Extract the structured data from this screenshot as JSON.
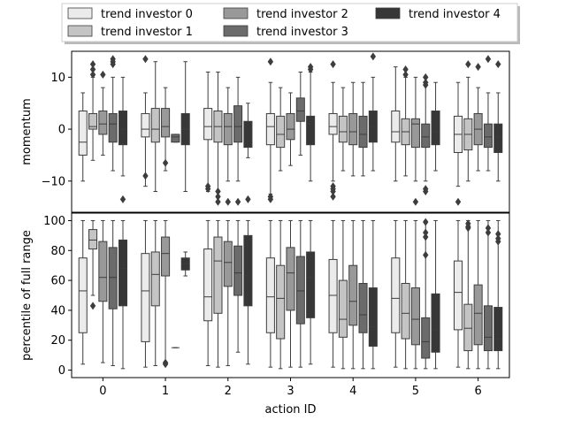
{
  "chart_data": {
    "type": "box",
    "xlabel": "action ID",
    "categories": [
      "0",
      "1",
      "2",
      "3",
      "4",
      "5",
      "6"
    ],
    "legend": {
      "placement": "top-center",
      "entries": [
        "trend investor 0",
        "trend investor 1",
        "trend investor 2",
        "trend investor 3",
        "trend investor 4"
      ]
    },
    "series_colors": [
      "#ebebeb",
      "#c4c4c4",
      "#999999",
      "#6b6b6b",
      "#373737"
    ],
    "panels": [
      {
        "ylabel": "momentum",
        "ylim": [
          -16,
          15
        ],
        "yticks": [
          -10,
          0,
          10
        ],
        "yticklabels": [
          "−10",
          "0",
          "10"
        ],
        "series": [
          {
            "name": "trend investor 0",
            "boxes": [
              {
                "min": -10,
                "q1": -5,
                "med": -2.5,
                "q3": 3.5,
                "max": 7,
                "outliers": []
              },
              {
                "min": -11,
                "q1": -1.5,
                "med": 0,
                "q3": 3,
                "max": 7,
                "outliers": [
                  13.5,
                  -9
                ]
              },
              {
                "min": -12,
                "q1": -2,
                "med": 0.5,
                "q3": 4,
                "max": 11,
                "outliers": [
                  -11,
                  -11.5
                ]
              },
              {
                "min": -12.5,
                "q1": -3,
                "med": 0.5,
                "q3": 3,
                "max": 9,
                "outliers": [
                  13,
                  -13,
                  -13.5
                ]
              },
              {
                "min": -10,
                "q1": -1,
                "med": 0.5,
                "q3": 3,
                "max": 9,
                "outliers": [
                  12.5,
                  -11,
                  -11.5,
                  -12,
                  -13
                ]
              },
              {
                "min": -10,
                "q1": -2.5,
                "med": -0.5,
                "q3": 3.5,
                "max": 12,
                "outliers": []
              },
              {
                "min": -11,
                "q1": -4.5,
                "med": -1,
                "q3": 2.5,
                "max": 9,
                "outliers": [
                  -14
                ]
              }
            ]
          },
          {
            "name": "trend investor 1",
            "boxes": [
              {
                "min": -6,
                "q1": 0,
                "med": 0.5,
                "q3": 3,
                "max": 10,
                "outliers": [
                  12.5,
                  11.5,
                  10.5
                ]
              },
              {
                "min": -12,
                "q1": -2.5,
                "med": 0,
                "q3": 4,
                "max": 13,
                "outliers": []
              },
              {
                "min": -12,
                "q1": -2.5,
                "med": 0.5,
                "q3": 3.5,
                "max": 11,
                "outliers": [
                  -12,
                  -13,
                  -14
                ]
              },
              {
                "min": -8,
                "q1": -3.5,
                "med": -1,
                "q3": 2.5,
                "max": 8,
                "outliers": []
              },
              {
                "min": -8,
                "q1": -2.5,
                "med": -0.5,
                "q3": 2.5,
                "max": 8,
                "outliers": []
              },
              {
                "min": -9,
                "q1": -3,
                "med": -0.5,
                "q3": 2,
                "max": 10,
                "outliers": [
                  11.5,
                  10.5
                ]
              },
              {
                "min": -10,
                "q1": -4,
                "med": -1,
                "q3": 2,
                "max": 10,
                "outliers": [
                  12.5
                ]
              }
            ]
          },
          {
            "name": "trend investor 2",
            "boxes": [
              {
                "min": -5,
                "q1": -1,
                "med": 1,
                "q3": 3.5,
                "max": 8,
                "outliers": [
                  10.5
                ]
              },
              {
                "min": -8,
                "q1": -1.5,
                "med": 0.5,
                "q3": 4,
                "max": 8,
                "outliers": [
                  -6.5
                ]
              },
              {
                "min": -10,
                "q1": -3,
                "med": 0.5,
                "q3": 3,
                "max": 8,
                "outliers": [
                  -14
                ]
              },
              {
                "min": -7,
                "q1": -2,
                "med": 0,
                "q3": 3,
                "max": 7,
                "outliers": []
              },
              {
                "min": -9,
                "q1": -3,
                "med": -0.5,
                "q3": 3,
                "max": 9,
                "outliers": []
              },
              {
                "min": -10,
                "q1": -3.5,
                "med": 1,
                "q3": 2,
                "max": 10,
                "outliers": [
                  -14
                ]
              },
              {
                "min": -8,
                "q1": -3,
                "med": 0,
                "q3": 3,
                "max": 8,
                "outliers": [
                  12
                ]
              }
            ]
          },
          {
            "name": "trend investor 3",
            "boxes": [
              {
                "min": -8,
                "q1": -2.5,
                "med": 1,
                "q3": 3,
                "max": 10,
                "outliers": [
                  13.5,
                  13,
                  12.5
                ]
              },
              {
                "min": -2.5,
                "q1": -2.5,
                "med": -1.5,
                "q3": -1,
                "max": -1,
                "outliers": []
              },
              {
                "min": -10,
                "q1": -2.5,
                "med": 0.5,
                "q3": 4.5,
                "max": 10,
                "outliers": [
                  -14
                ]
              },
              {
                "min": -5,
                "q1": 1.5,
                "med": 3.5,
                "q3": 6,
                "max": 11,
                "outliers": []
              },
              {
                "min": -9,
                "q1": -3.5,
                "med": -1,
                "q3": 2.5,
                "max": 9,
                "outliers": []
              },
              {
                "min": -10,
                "q1": -3.5,
                "med": -1.5,
                "q3": 1,
                "max": 9,
                "outliers": [
                  10,
                  9,
                  8.5,
                  -11.5,
                  -12
                ]
              },
              {
                "min": -8,
                "q1": -3.5,
                "med": -1.5,
                "q3": 1,
                "max": 7,
                "outliers": [
                  13.5
                ]
              }
            ]
          },
          {
            "name": "trend investor 4",
            "boxes": [
              {
                "min": -9,
                "q1": -3,
                "med": 0,
                "q3": 3.5,
                "max": 10,
                "outliers": [
                  -13.5
                ]
              },
              {
                "min": -12,
                "q1": -3,
                "med": 0,
                "q3": 3,
                "max": 13,
                "outliers": []
              },
              {
                "min": -5.5,
                "q1": -3.5,
                "med": -1,
                "q3": 1.5,
                "max": 5,
                "outliers": [
                  -13.5
                ]
              },
              {
                "min": -10,
                "q1": -3,
                "med": 1,
                "q3": 2.5,
                "max": 11,
                "outliers": [
                  12,
                  11.5
                ]
              },
              {
                "min": -8,
                "q1": -2.5,
                "med": 0.5,
                "q3": 3.5,
                "max": 10,
                "outliers": [
                  14
                ]
              },
              {
                "min": -8,
                "q1": -3,
                "med": -0.5,
                "q3": 3.5,
                "max": 9,
                "outliers": []
              },
              {
                "min": -10,
                "q1": -4.5,
                "med": -1.5,
                "q3": 1,
                "max": 7,
                "outliers": [
                  12.5
                ]
              }
            ]
          }
        ]
      },
      {
        "ylabel": "percentile of full range",
        "ylim": [
          -5,
          105
        ],
        "yticks": [
          0,
          20,
          40,
          60,
          80,
          100
        ],
        "yticklabels": [
          "0",
          "20",
          "40",
          "60",
          "80",
          "100"
        ],
        "series": [
          {
            "name": "trend investor 0",
            "boxes": [
              {
                "min": 4,
                "q1": 25,
                "med": 53,
                "q3": 75,
                "max": 100,
                "outliers": []
              },
              {
                "min": 2,
                "q1": 19,
                "med": 53,
                "q3": 78,
                "max": 100,
                "outliers": []
              },
              {
                "min": 3,
                "q1": 33,
                "med": 49,
                "q3": 81,
                "max": 100,
                "outliers": []
              },
              {
                "min": 2,
                "q1": 25,
                "med": 49,
                "q3": 75,
                "max": 100,
                "outliers": []
              },
              {
                "min": 2,
                "q1": 25,
                "med": 50,
                "q3": 74,
                "max": 100,
                "outliers": []
              },
              {
                "min": 2,
                "q1": 25,
                "med": 48,
                "q3": 75,
                "max": 100,
                "outliers": []
              },
              {
                "min": 2,
                "q1": 27,
                "med": 52,
                "q3": 73,
                "max": 100,
                "outliers": []
              }
            ]
          },
          {
            "name": "trend investor 1",
            "boxes": [
              {
                "min": 50,
                "q1": 81,
                "med": 87,
                "q3": 94,
                "max": 100,
                "outliers": [
                  43
                ]
              },
              {
                "min": 3,
                "q1": 43,
                "med": 64,
                "q3": 79,
                "max": 100,
                "outliers": []
              },
              {
                "min": 2,
                "q1": 38,
                "med": 73,
                "q3": 89,
                "max": 100,
                "outliers": []
              },
              {
                "min": 1,
                "q1": 21,
                "med": 48,
                "q3": 70,
                "max": 100,
                "outliers": []
              },
              {
                "min": 1,
                "q1": 22,
                "med": 34,
                "q3": 60,
                "max": 100,
                "outliers": []
              },
              {
                "min": 1,
                "q1": 21,
                "med": 38,
                "q3": 58,
                "max": 100,
                "outliers": []
              },
              {
                "min": 1,
                "q1": 13,
                "med": 28,
                "q3": 44,
                "max": 100,
                "outliers": [
                  98,
                  96,
                  95
                ]
              }
            ]
          },
          {
            "name": "trend investor 2",
            "boxes": [
              {
                "min": 5,
                "q1": 46,
                "med": 62,
                "q3": 86,
                "max": 100,
                "outliers": []
              },
              {
                "min": 4,
                "q1": 63,
                "med": 78,
                "q3": 89,
                "max": 100,
                "outliers": [
                  5,
                  4
                ]
              },
              {
                "min": 3,
                "q1": 56,
                "med": 72,
                "q3": 86,
                "max": 100,
                "outliers": []
              },
              {
                "min": 2,
                "q1": 40,
                "med": 65,
                "q3": 82,
                "max": 100,
                "outliers": []
              },
              {
                "min": 1,
                "q1": 30,
                "med": 46,
                "q3": 70,
                "max": 100,
                "outliers": []
              },
              {
                "min": 1,
                "q1": 17,
                "med": 34,
                "q3": 55,
                "max": 100,
                "outliers": []
              },
              {
                "min": 1,
                "q1": 17,
                "med": 38,
                "q3": 57,
                "max": 100,
                "outliers": []
              }
            ]
          },
          {
            "name": "trend investor 3",
            "boxes": [
              {
                "min": 3,
                "q1": 41,
                "med": 62,
                "q3": 82,
                "max": 100,
                "outliers": []
              },
              {
                "min": 15,
                "q1": 15,
                "med": 15,
                "q3": 15,
                "max": 15,
                "outliers": []
              },
              {
                "min": 12,
                "q1": 50,
                "med": 65,
                "q3": 83,
                "max": 100,
                "outliers": []
              },
              {
                "min": 2,
                "q1": 31,
                "med": 53,
                "q3": 76,
                "max": 100,
                "outliers": []
              },
              {
                "min": 1,
                "q1": 25,
                "med": 37,
                "q3": 58,
                "max": 100,
                "outliers": []
              },
              {
                "min": 1,
                "q1": 8,
                "med": 19,
                "q3": 35,
                "max": 100,
                "outliers": [
                  99,
                  92,
                  89,
                  77
                ]
              },
              {
                "min": 1,
                "q1": 13,
                "med": 22,
                "q3": 43,
                "max": 100,
                "outliers": [
                  95,
                  92
                ]
              }
            ]
          },
          {
            "name": "trend investor 4",
            "boxes": [
              {
                "min": 1,
                "q1": 43,
                "med": 68,
                "q3": 87,
                "max": 100,
                "outliers": []
              },
              {
                "min": 63,
                "q1": 67,
                "med": 71,
                "q3": 75,
                "max": 79,
                "outliers": []
              },
              {
                "min": 4,
                "q1": 43,
                "med": 63,
                "q3": 90,
                "max": 100,
                "outliers": []
              },
              {
                "min": 4,
                "q1": 35,
                "med": 62,
                "q3": 79,
                "max": 100,
                "outliers": []
              },
              {
                "min": 1,
                "q1": 16,
                "med": 29,
                "q3": 55,
                "max": 100,
                "outliers": []
              },
              {
                "min": 1,
                "q1": 12,
                "med": 27,
                "q3": 51,
                "max": 100,
                "outliers": []
              },
              {
                "min": 1,
                "q1": 13,
                "med": 21,
                "q3": 42,
                "max": 100,
                "outliers": [
                  91,
                  88,
                  86
                ]
              }
            ]
          }
        ]
      }
    ]
  }
}
